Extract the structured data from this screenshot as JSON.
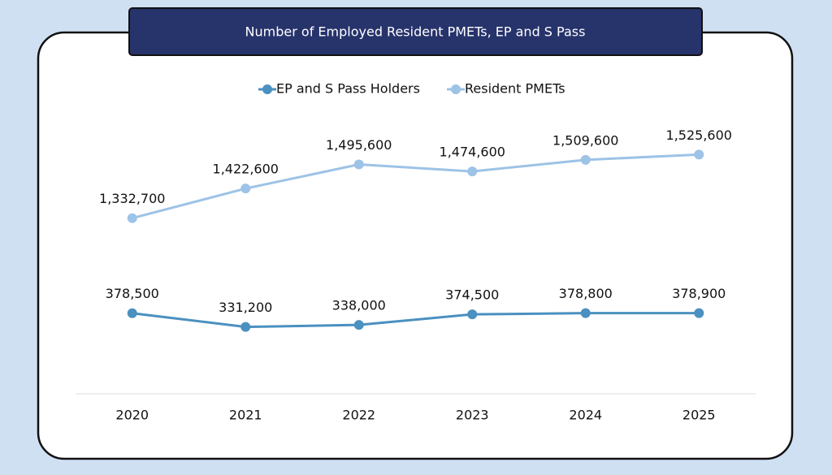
{
  "chart_data": {
    "type": "line",
    "title": "Number of Employed Resident PMETs, EP and S Pass",
    "categories": [
      "2020",
      "2021",
      "2022",
      "2023",
      "2024",
      "2025"
    ],
    "series": [
      {
        "name": "EP and S Pass Holders",
        "color": "#4a90c0",
        "axis": "y2",
        "values": [
          378500,
          331200,
          338000,
          374500,
          378800,
          378900
        ],
        "value_labels": [
          "378,500",
          "331,200",
          "338,000",
          "374,500",
          "378,800",
          "378,900"
        ]
      },
      {
        "name": "Resident PMETs",
        "color": "#9dc3e6",
        "values": [
          1332700,
          1422600,
          1495600,
          1474600,
          1509600,
          1525600
        ],
        "value_labels": [
          "1,332,700",
          "1,422,600",
          "1,495,600",
          "1,474,600",
          "1,509,600",
          "1,525,600"
        ]
      }
    ],
    "ylim": [
      800000,
      1625000
    ],
    "y2lim": [
      100000,
      1040000
    ]
  }
}
